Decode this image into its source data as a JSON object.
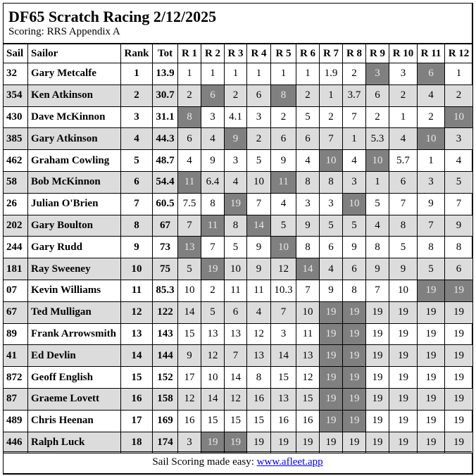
{
  "title": "DF65 Scratch Racing 2/12/2025",
  "subtitle": "Scoring: RRS Appendix A",
  "colors": {
    "discard_bg": "#808080",
    "alt_row_bg": "#dcdcdc",
    "link": "#0000ee"
  },
  "columns": [
    "Sail",
    "Sailor",
    "Rank",
    "Tot",
    "R 1",
    "R 2",
    "R 3",
    "R 4",
    "R 5",
    "R 6",
    "R 7",
    "R 8",
    "R 9",
    "R 10",
    "R 11",
    "R 12"
  ],
  "rows": [
    {
      "sail": "32",
      "sailor": "Gary Metcalfe",
      "rank": "1",
      "tot": "13.9",
      "scores": [
        "1",
        "1",
        "1",
        "1",
        "1",
        "1",
        "1.9",
        "2",
        "3",
        "3",
        "6",
        "1"
      ],
      "discards": [
        8,
        10
      ]
    },
    {
      "sail": "354",
      "sailor": "Ken Atkinson",
      "rank": "2",
      "tot": "30.7",
      "scores": [
        "2",
        "6",
        "2",
        "6",
        "8",
        "2",
        "1",
        "3.7",
        "6",
        "2",
        "4",
        "2"
      ],
      "discards": [
        1,
        4
      ]
    },
    {
      "sail": "430",
      "sailor": "Dave McKinnon",
      "rank": "3",
      "tot": "31.1",
      "scores": [
        "8",
        "3",
        "4.1",
        "3",
        "2",
        "5",
        "2",
        "7",
        "2",
        "1",
        "2",
        "10"
      ],
      "discards": [
        0,
        11
      ]
    },
    {
      "sail": "385",
      "sailor": "Gary Atkinson",
      "rank": "4",
      "tot": "44.3",
      "scores": [
        "6",
        "4",
        "9",
        "2",
        "6",
        "6",
        "7",
        "1",
        "5.3",
        "4",
        "10",
        "3"
      ],
      "discards": [
        2,
        10
      ]
    },
    {
      "sail": "462",
      "sailor": "Graham Cowling",
      "rank": "5",
      "tot": "48.7",
      "scores": [
        "4",
        "9",
        "3",
        "5",
        "9",
        "4",
        "10",
        "4",
        "10",
        "5.7",
        "1",
        "4"
      ],
      "discards": [
        6,
        8
      ]
    },
    {
      "sail": "58",
      "sailor": "Bob McKinnon",
      "rank": "6",
      "tot": "54.4",
      "scores": [
        "11",
        "6.4",
        "4",
        "10",
        "11",
        "8",
        "8",
        "3",
        "1",
        "6",
        "3",
        "5"
      ],
      "discards": [
        0,
        4
      ]
    },
    {
      "sail": "26",
      "sailor": "Julian O'Brien",
      "rank": "7",
      "tot": "60.5",
      "scores": [
        "7.5",
        "8",
        "19",
        "7",
        "4",
        "3",
        "3",
        "10",
        "5",
        "7",
        "9",
        "7"
      ],
      "discards": [
        2,
        7
      ]
    },
    {
      "sail": "202",
      "sailor": "Gary Boulton",
      "rank": "8",
      "tot": "67",
      "scores": [
        "7",
        "11",
        "8",
        "14",
        "5",
        "9",
        "5",
        "5",
        "4",
        "8",
        "7",
        "9"
      ],
      "discards": [
        1,
        3
      ]
    },
    {
      "sail": "244",
      "sailor": "Gary Rudd",
      "rank": "9",
      "tot": "73",
      "scores": [
        "13",
        "7",
        "5",
        "9",
        "10",
        "8",
        "6",
        "9",
        "8",
        "5",
        "8",
        "8"
      ],
      "discards": [
        0,
        4
      ]
    },
    {
      "sail": "181",
      "sailor": "Ray Sweeney",
      "rank": "10",
      "tot": "75",
      "scores": [
        "5",
        "19",
        "10",
        "9",
        "12",
        "14",
        "4",
        "6",
        "9",
        "9",
        "5",
        "6"
      ],
      "discards": [
        1,
        5
      ]
    },
    {
      "sail": "07",
      "sailor": "Kevin Williams",
      "rank": "11",
      "tot": "85.3",
      "scores": [
        "10",
        "2",
        "11",
        "11",
        "10.3",
        "7",
        "9",
        "8",
        "7",
        "10",
        "19",
        "19"
      ],
      "discards": [
        10,
        11
      ]
    },
    {
      "sail": "67",
      "sailor": "Ted Mulligan",
      "rank": "12",
      "tot": "122",
      "scores": [
        "14",
        "5",
        "6",
        "4",
        "7",
        "10",
        "19",
        "19",
        "19",
        "19",
        "19",
        "19"
      ],
      "discards": [
        6,
        7
      ]
    },
    {
      "sail": "89",
      "sailor": "Frank Arrowsmith",
      "rank": "13",
      "tot": "143",
      "scores": [
        "15",
        "13",
        "13",
        "12",
        "3",
        "11",
        "19",
        "19",
        "19",
        "19",
        "19",
        "19"
      ],
      "discards": [
        6,
        7
      ]
    },
    {
      "sail": "41",
      "sailor": "Ed Devlin",
      "rank": "14",
      "tot": "144",
      "scores": [
        "9",
        "12",
        "7",
        "13",
        "14",
        "13",
        "19",
        "19",
        "19",
        "19",
        "19",
        "19"
      ],
      "discards": [
        6,
        7
      ]
    },
    {
      "sail": "872",
      "sailor": "Geoff English",
      "rank": "15",
      "tot": "152",
      "scores": [
        "17",
        "10",
        "14",
        "8",
        "15",
        "12",
        "19",
        "19",
        "19",
        "19",
        "19",
        "19"
      ],
      "discards": [
        6,
        7
      ]
    },
    {
      "sail": "87",
      "sailor": "Graeme Lovett",
      "rank": "16",
      "tot": "158",
      "scores": [
        "12",
        "14",
        "12",
        "16",
        "13",
        "15",
        "19",
        "19",
        "19",
        "19",
        "19",
        "19"
      ],
      "discards": [
        6,
        7
      ]
    },
    {
      "sail": "489",
      "sailor": "Chris Heenan",
      "rank": "17",
      "tot": "169",
      "scores": [
        "16",
        "15",
        "15",
        "15",
        "16",
        "16",
        "19",
        "19",
        "19",
        "19",
        "19",
        "19"
      ],
      "discards": [
        6,
        7
      ]
    },
    {
      "sail": "446",
      "sailor": "Ralph Luck",
      "rank": "18",
      "tot": "174",
      "scores": [
        "3",
        "19",
        "19",
        "19",
        "19",
        "19",
        "19",
        "19",
        "19",
        "19",
        "19",
        "19"
      ],
      "discards": [
        1,
        2
      ]
    }
  ],
  "footer": {
    "text": "Sail Scoring made easy: ",
    "link_text": "www.afleet.app"
  }
}
